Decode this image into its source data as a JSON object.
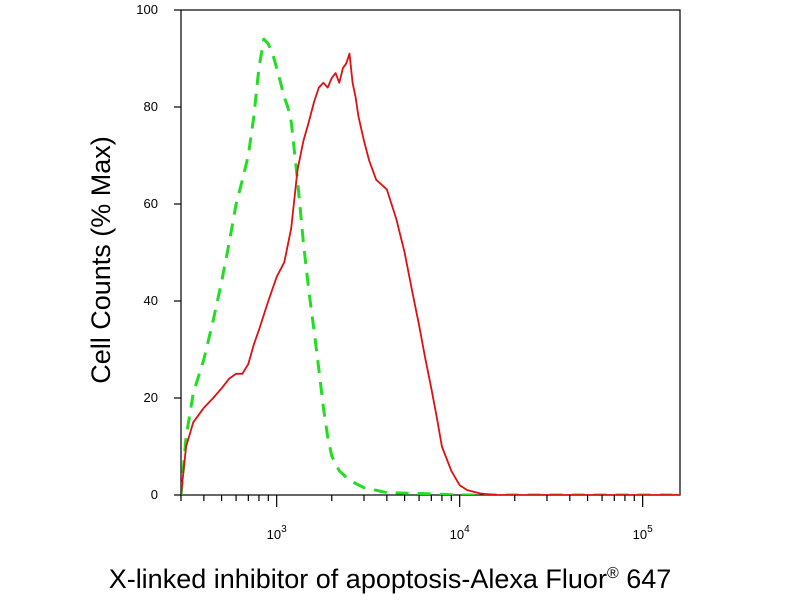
{
  "chart_data": {
    "type": "line",
    "title": "",
    "xlabel": "X-linked inhibitor of apoptosis-Alexa Fluor",
    "xlabel_superscript": "®",
    "xlabel_suffix": " 647",
    "ylabel": "Cell Counts (% Max)",
    "x_scale": "log",
    "xlim": [
      300,
      160000
    ],
    "ylim": [
      0,
      100
    ],
    "y_ticks": [
      {
        "value": 0,
        "label": "0"
      },
      {
        "value": 20,
        "label": "20"
      },
      {
        "value": 40,
        "label": "40"
      },
      {
        "value": 60,
        "label": "60"
      },
      {
        "value": 80,
        "label": "80"
      },
      {
        "value": 100,
        "label": "100"
      }
    ],
    "x_major_ticks": [
      {
        "value": 1000,
        "base": "10",
        "exp": "3"
      },
      {
        "value": 10000,
        "base": "10",
        "exp": "4"
      },
      {
        "value": 100000,
        "base": "10",
        "exp": "5"
      }
    ],
    "x_minor_ticks": [
      300,
      400,
      500,
      600,
      700,
      800,
      900,
      2000,
      3000,
      4000,
      5000,
      6000,
      7000,
      8000,
      9000,
      20000,
      30000,
      40000,
      50000,
      60000,
      70000,
      80000,
      90000
    ],
    "grid": false,
    "legend": "none",
    "series": [
      {
        "style": "dashed",
        "color": "#22dd22",
        "points": [
          [
            300,
            0
          ],
          [
            320,
            12
          ],
          [
            350,
            21
          ],
          [
            400,
            28
          ],
          [
            450,
            36
          ],
          [
            500,
            44
          ],
          [
            550,
            52
          ],
          [
            600,
            60
          ],
          [
            650,
            65
          ],
          [
            700,
            70
          ],
          [
            750,
            78
          ],
          [
            800,
            88
          ],
          [
            850,
            94
          ],
          [
            900,
            93
          ],
          [
            950,
            91
          ],
          [
            1000,
            88
          ],
          [
            1050,
            85
          ],
          [
            1100,
            82
          ],
          [
            1150,
            80
          ],
          [
            1200,
            77
          ],
          [
            1300,
            65
          ],
          [
            1400,
            52
          ],
          [
            1500,
            42
          ],
          [
            1600,
            34
          ],
          [
            1700,
            26
          ],
          [
            1800,
            18
          ],
          [
            1900,
            12
          ],
          [
            2000,
            8
          ],
          [
            2200,
            5
          ],
          [
            2500,
            3
          ],
          [
            3000,
            1.5
          ],
          [
            4000,
            0.5
          ],
          [
            6000,
            0.3
          ],
          [
            10000,
            0
          ],
          [
            160000,
            0
          ]
        ]
      },
      {
        "style": "solid",
        "color": "#dd1111",
        "points": [
          [
            300,
            0
          ],
          [
            320,
            10
          ],
          [
            350,
            15
          ],
          [
            400,
            18
          ],
          [
            450,
            20
          ],
          [
            500,
            22
          ],
          [
            550,
            24
          ],
          [
            600,
            25
          ],
          [
            650,
            25
          ],
          [
            700,
            27
          ],
          [
            750,
            31
          ],
          [
            800,
            34
          ],
          [
            900,
            40
          ],
          [
            1000,
            45
          ],
          [
            1100,
            48
          ],
          [
            1200,
            55
          ],
          [
            1300,
            67
          ],
          [
            1400,
            73
          ],
          [
            1500,
            77
          ],
          [
            1600,
            81
          ],
          [
            1700,
            84
          ],
          [
            1800,
            85
          ],
          [
            1900,
            84
          ],
          [
            2000,
            86
          ],
          [
            2100,
            87
          ],
          [
            2200,
            85
          ],
          [
            2300,
            88
          ],
          [
            2400,
            89
          ],
          [
            2500,
            91
          ],
          [
            2600,
            85
          ],
          [
            2700,
            82
          ],
          [
            2800,
            78
          ],
          [
            3000,
            73
          ],
          [
            3200,
            69
          ],
          [
            3500,
            65
          ],
          [
            4000,
            63
          ],
          [
            4500,
            57
          ],
          [
            5000,
            50
          ],
          [
            5500,
            42
          ],
          [
            6000,
            35
          ],
          [
            6500,
            28
          ],
          [
            7000,
            22
          ],
          [
            7500,
            16
          ],
          [
            8000,
            10
          ],
          [
            9000,
            5
          ],
          [
            10000,
            2
          ],
          [
            11000,
            1
          ],
          [
            13000,
            0.3
          ],
          [
            16000,
            0
          ],
          [
            160000,
            0
          ]
        ]
      }
    ]
  }
}
